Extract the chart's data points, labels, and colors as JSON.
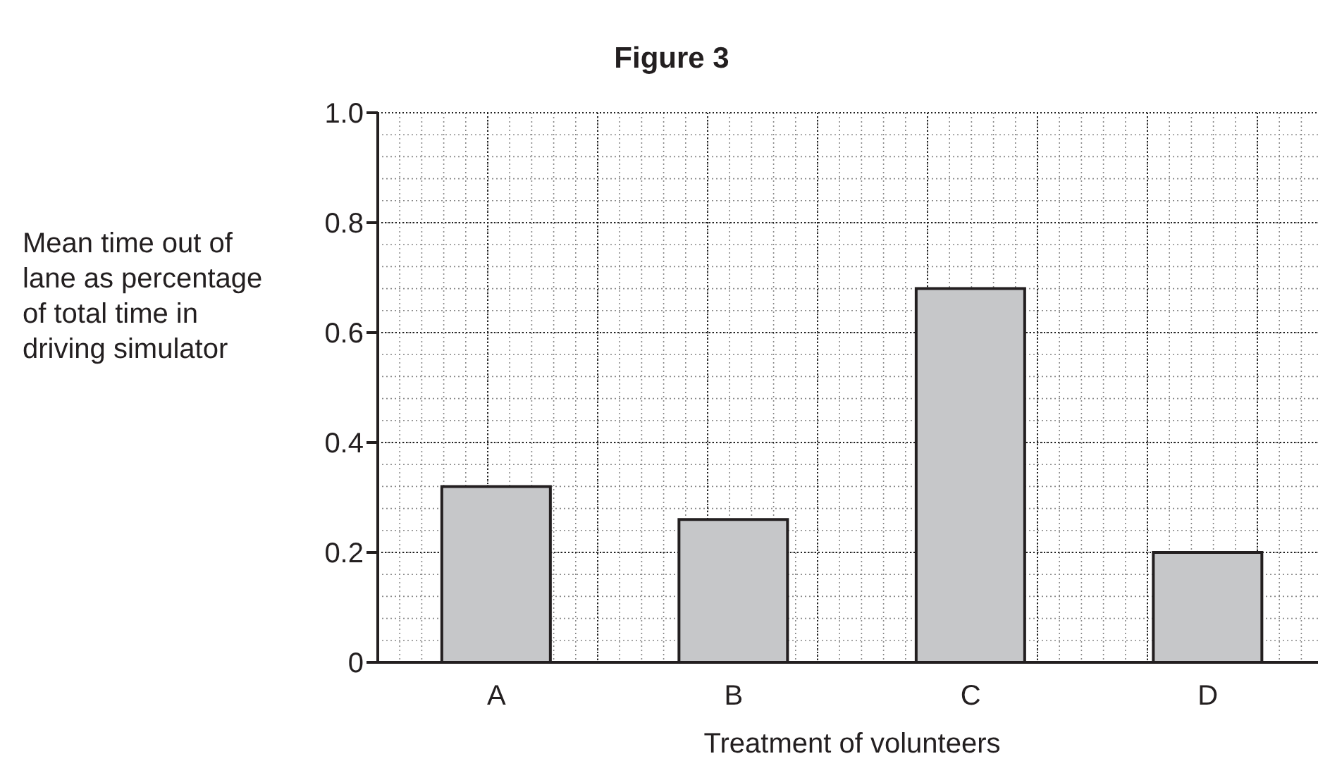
{
  "chart_data": {
    "type": "bar",
    "title": "Figure 3",
    "xlabel": "Treatment of volunteers",
    "ylabel": "Mean time out of lane as percentage of total time in driving simulator",
    "categories": [
      "A",
      "B",
      "C",
      "D"
    ],
    "values": [
      0.32,
      0.26,
      0.68,
      0.2
    ],
    "color": "#c6c7c9",
    "ylim": [
      0,
      1.0
    ],
    "yticks": [
      0,
      0.2,
      0.4,
      0.6,
      0.8,
      {
        "value": 1.0,
        "label": "1.0"
      }
    ],
    "grid": true
  }
}
